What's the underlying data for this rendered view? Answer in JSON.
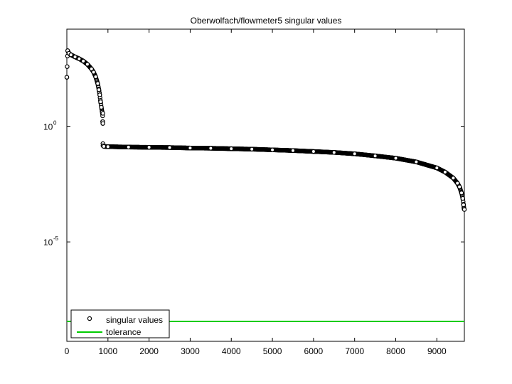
{
  "chart_data": {
    "type": "scatter",
    "title": "Oberwolfach/flowmeter5 singular values",
    "xlabel": "",
    "ylabel": "",
    "xlim": [
      0,
      9669
    ],
    "ylim_log10": [
      -9.3,
      4.2
    ],
    "y_scale": "log",
    "grid": false,
    "legend_position": "bottom-left",
    "x_ticks": [
      0,
      1000,
      2000,
      3000,
      4000,
      5000,
      6000,
      7000,
      8000,
      9000
    ],
    "x_tick_labels": [
      "0",
      "1000",
      "2000",
      "3000",
      "4000",
      "5000",
      "6000",
      "7000",
      "8000",
      "9000"
    ],
    "y_ticks": [
      {
        "value_log10": 0,
        "base": "10",
        "exponent": "0"
      },
      {
        "value_log10": -5,
        "base": "10",
        "exponent": "-5"
      }
    ],
    "series": [
      {
        "name": "singular values",
        "marker": "circle-open",
        "color": "#000000",
        "points": [
          [
            0,
            2.12
          ],
          [
            20,
            3.27
          ],
          [
            50,
            3.16
          ],
          [
            100,
            3.09
          ],
          [
            200,
            3.0
          ],
          [
            300,
            2.92
          ],
          [
            400,
            2.82
          ],
          [
            500,
            2.68
          ],
          [
            600,
            2.48
          ],
          [
            650,
            2.34
          ],
          [
            700,
            2.14
          ],
          [
            750,
            1.85
          ],
          [
            780,
            1.58
          ],
          [
            800,
            1.36
          ],
          [
            820,
            1.06
          ],
          [
            840,
            0.82
          ],
          [
            860,
            0.61
          ],
          [
            870,
            0.45
          ],
          [
            872,
            0.2
          ],
          [
            875,
            0.12
          ],
          [
            876,
            0.56
          ],
          [
            877,
            -0.75
          ],
          [
            880,
            -0.84
          ],
          [
            900,
            -0.87
          ],
          [
            1000,
            -0.88
          ],
          [
            1500,
            -0.9
          ],
          [
            2000,
            -0.91
          ],
          [
            2500,
            -0.92
          ],
          [
            3000,
            -0.94
          ],
          [
            3500,
            -0.95
          ],
          [
            4000,
            -0.97
          ],
          [
            4500,
            -0.99
          ],
          [
            5000,
            -1.02
          ],
          [
            5500,
            -1.05
          ],
          [
            6000,
            -1.09
          ],
          [
            6500,
            -1.13
          ],
          [
            7000,
            -1.19
          ],
          [
            7500,
            -1.28
          ],
          [
            8000,
            -1.38
          ],
          [
            8500,
            -1.54
          ],
          [
            9000,
            -1.8
          ],
          [
            9200,
            -1.98
          ],
          [
            9400,
            -2.24
          ],
          [
            9500,
            -2.46
          ],
          [
            9550,
            -2.62
          ],
          [
            9600,
            -2.88
          ],
          [
            9630,
            -3.12
          ],
          [
            9650,
            -3.4
          ],
          [
            9660,
            -3.56
          ],
          [
            9669,
            -3.6
          ]
        ]
      },
      {
        "name": "tolerance",
        "line": "solid",
        "color": "#00cc00",
        "y_log10": -8.44
      }
    ]
  }
}
